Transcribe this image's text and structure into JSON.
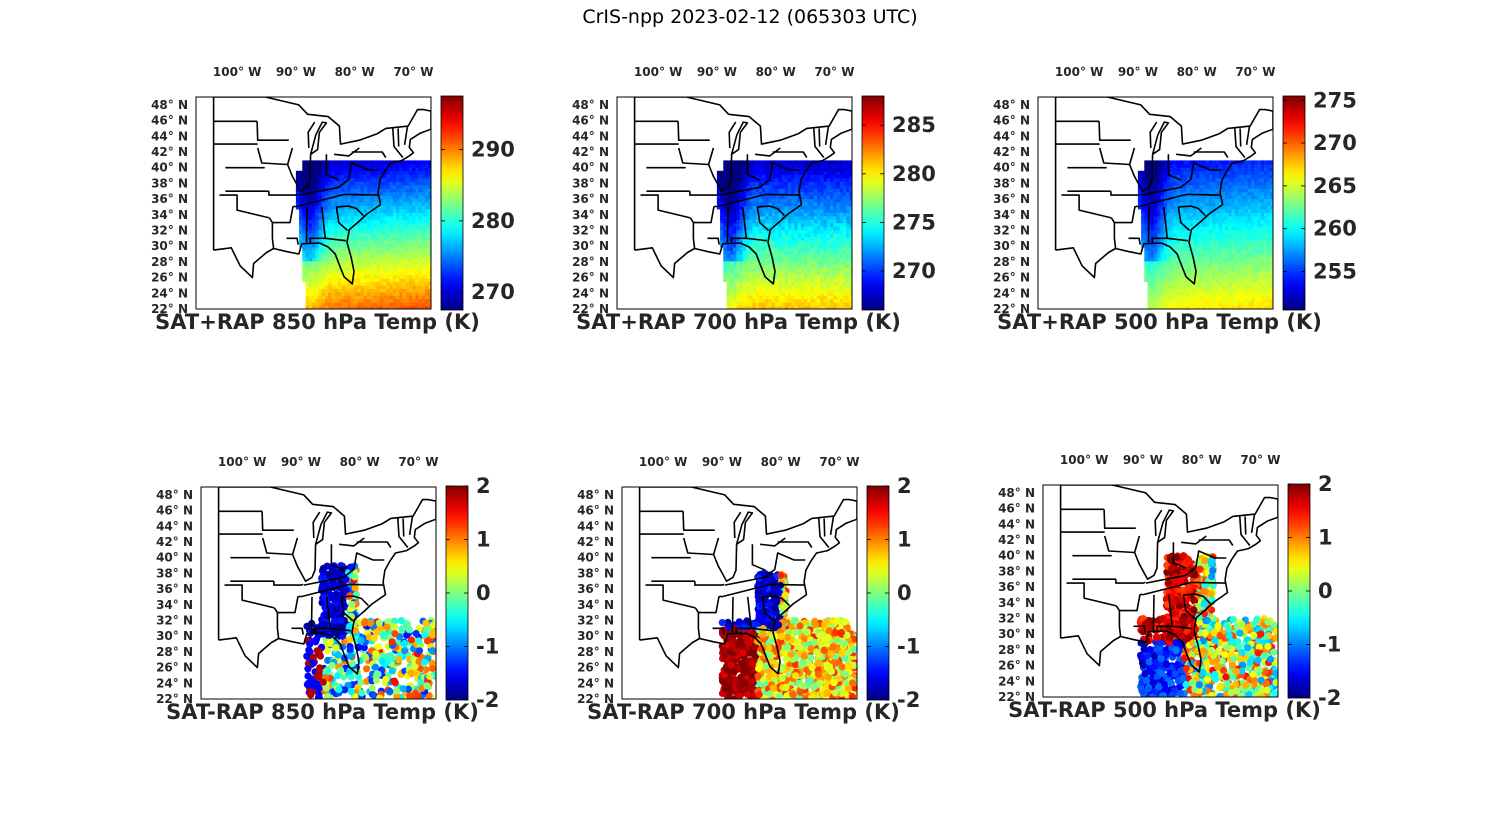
{
  "title": "CrIS-npp 2023-02-12 (065303 UTC)",
  "colormap": "jet",
  "lat_ticks": [
    "48° N",
    "46° N",
    "44° N",
    "42° N",
    "40° N",
    "38° N",
    "36° N",
    "34° N",
    "32° N",
    "30° N",
    "28° N",
    "26° N",
    "24° N",
    "22° N"
  ],
  "lon_ticks": [
    "100° W",
    "90° W",
    "80° W",
    "70° W"
  ],
  "chart_data": [
    {
      "type": "heatmap",
      "title": "SAT+RAP 850 hPa Temp (K)",
      "field": "temperature",
      "level_hPa": 850,
      "lat_range": [
        22,
        49
      ],
      "lon_range": [
        -107,
        -67
      ],
      "clim": [
        267.5,
        297.5
      ],
      "colorbar_ticks": [
        270,
        280,
        290
      ],
      "field_summary": {
        "northeast": 270,
        "southeast": 287,
        "south_florida": 292
      }
    },
    {
      "type": "heatmap",
      "title": "SAT+RAP 700 hPa Temp (K)",
      "field": "temperature",
      "level_hPa": 700,
      "lat_range": [
        22,
        49
      ],
      "lon_range": [
        -107,
        -67
      ],
      "clim": [
        266,
        288
      ],
      "colorbar_ticks": [
        270,
        275,
        280,
        285
      ],
      "field_summary": {
        "northeast": 268,
        "southeast": 279,
        "south_florida": 281
      }
    },
    {
      "type": "heatmap",
      "title": "SAT+RAP 500 hPa Temp (K)",
      "field": "temperature",
      "level_hPa": 500,
      "lat_range": [
        22,
        49
      ],
      "lon_range": [
        -107,
        -67
      ],
      "clim": [
        250.5,
        275.5
      ],
      "colorbar_ticks": [
        255,
        260,
        265,
        270,
        275
      ],
      "field_summary": {
        "northeast": 254,
        "southeast": 262,
        "south_florida": 266
      }
    },
    {
      "type": "scatter",
      "title": "SAT-RAP 850 hPa Temp (K)",
      "field": "temperature difference",
      "level_hPa": 850,
      "lat_range": [
        22,
        49
      ],
      "lon_range": [
        -107,
        -67
      ],
      "clim": [
        -2,
        2
      ],
      "colorbar_ticks": [
        2,
        1,
        0,
        -1,
        -2
      ],
      "field_summary": {
        "appalachians": -2,
        "gulf_coast": 1.5,
        "atlantic": 0
      }
    },
    {
      "type": "scatter",
      "title": "SAT-RAP 700 hPa Temp (K)",
      "field": "temperature difference",
      "level_hPa": 700,
      "lat_range": [
        22,
        49
      ],
      "lon_range": [
        -107,
        -67
      ],
      "clim": [
        -2,
        2
      ],
      "colorbar_ticks": [
        2,
        1,
        0,
        -1,
        -2
      ],
      "field_summary": {
        "gulf_coast": 2,
        "appalachians": -2,
        "atlantic": 0.5
      }
    },
    {
      "type": "scatter",
      "title": "SAT-RAP 500 hPa Temp (K)",
      "field": "temperature difference",
      "level_hPa": 500,
      "lat_range": [
        22,
        49
      ],
      "lon_range": [
        -107,
        -67
      ],
      "clim": [
        -2,
        2
      ],
      "colorbar_ticks": [
        2,
        1,
        0,
        -1,
        -2
      ],
      "field_summary": {
        "appalachians": 2,
        "gulf_coast": -1.5,
        "atlantic": 0.5
      }
    }
  ]
}
